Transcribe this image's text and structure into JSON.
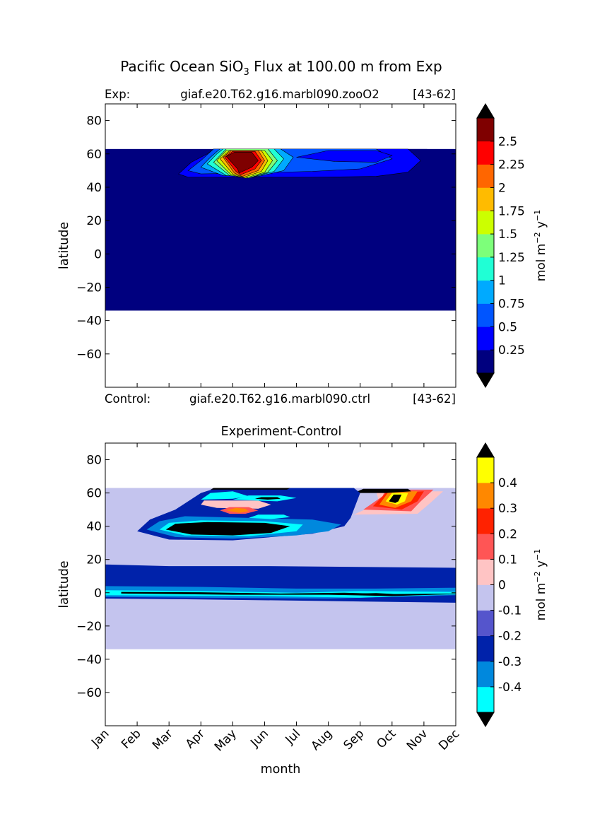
{
  "figure": {
    "title_prefix": "Pacific Ocean SiO",
    "title_sub": "3",
    "title_suffix": " Flux at 100.00 m from Exp"
  },
  "chart_data": [
    {
      "type": "heatmap",
      "panel": "top",
      "left_label": "Exp:",
      "center_label": "giaf.e20.T62.g16.marbl090.zooO2",
      "right_label": "[43-62]",
      "bottom_left_label": "Control:",
      "bottom_center_label": "giaf.e20.T62.g16.marbl090.ctrl",
      "bottom_right_label": "[43-62]",
      "xlabel": "",
      "ylabel": "latitude",
      "x_ticks": [
        "Jan",
        "Feb",
        "Mar",
        "Apr",
        "May",
        "Jun",
        "Jul",
        "Aug",
        "Sep",
        "Oct",
        "Nov",
        "Dec"
      ],
      "show_x_tick_labels": false,
      "y_ticks": [
        80,
        60,
        40,
        20,
        0,
        -20,
        -40,
        -60
      ],
      "xlim": [
        0,
        11
      ],
      "ylim": [
        -80,
        90
      ],
      "data_lat_range": [
        -34,
        63
      ],
      "colorbar": {
        "label_main": "mol m",
        "label_exp1": "−2",
        "label_mid": " y",
        "label_exp2": "−1",
        "levels": [
          0,
          0.25,
          0.5,
          0.75,
          1,
          1.25,
          1.5,
          1.75,
          2,
          2.25,
          2.5,
          2.75
        ],
        "tick_labels": [
          "0.25",
          "0.5",
          "0.75",
          "1",
          "1.25",
          "1.5",
          "1.75",
          "2",
          "2.25",
          "2.5"
        ],
        "colors": [
          "#00007f",
          "#0000ff",
          "#0055ff",
          "#00aaff",
          "#20ffd5",
          "#7dff7a",
          "#ccff00",
          "#ffbb00",
          "#ff6600",
          "#ff0000",
          "#7f0000"
        ],
        "extend_colors": [
          "#000000",
          "#000000"
        ]
      }
    },
    {
      "type": "heatmap",
      "panel": "bottom",
      "title": "Experiment-Control",
      "xlabel": "month",
      "ylabel": "latitude",
      "x_ticks": [
        "Jan",
        "Feb",
        "Mar",
        "Apr",
        "May",
        "Jun",
        "Jul",
        "Aug",
        "Sep",
        "Oct",
        "Nov",
        "Dec"
      ],
      "show_x_tick_labels": true,
      "y_ticks": [
        80,
        60,
        40,
        20,
        0,
        -20,
        -40,
        -60
      ],
      "xlim": [
        0,
        11
      ],
      "ylim": [
        -80,
        90
      ],
      "data_lat_range": [
        -34,
        63
      ],
      "colorbar": {
        "label_main": "mol m",
        "label_exp1": "−2",
        "label_mid": " y",
        "label_exp2": "−1",
        "levels": [
          -0.5,
          -0.4,
          -0.3,
          -0.2,
          -0.1,
          0,
          0.1,
          0.2,
          0.3,
          0.4,
          0.5
        ],
        "tick_labels": [
          "-0.4",
          "-0.3",
          "-0.2",
          "-0.1",
          "0",
          "0.1",
          "0.2",
          "0.3",
          "0.4"
        ],
        "colors": [
          "#00ffff",
          "#0088dd",
          "#0022aa",
          "#5555cc",
          "#c4c4ee",
          "#ffc4c4",
          "#ff5555",
          "#ff2200",
          "#ff8800",
          "#ffff00"
        ],
        "extend_colors": [
          "#000000",
          "#000000"
        ]
      }
    }
  ]
}
